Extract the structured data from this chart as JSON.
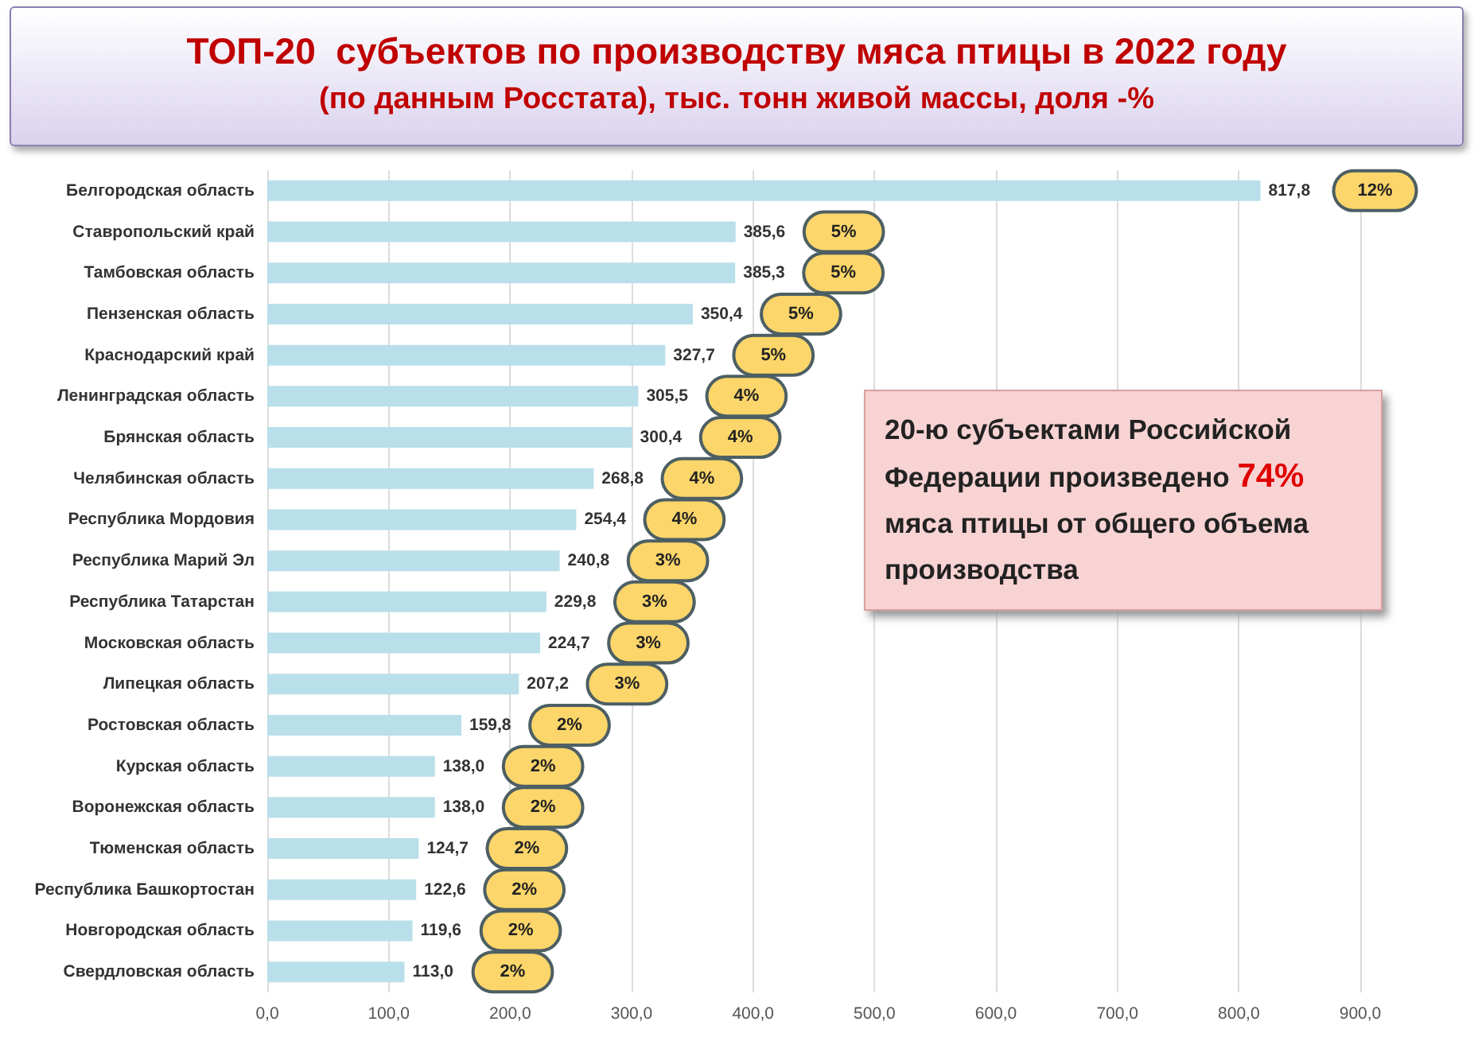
{
  "chart_data": {
    "type": "bar",
    "orientation": "horizontal",
    "title": "ТОП-20  субъектов по производству мяса птицы в 2022 году",
    "subtitle": "(по данным Росстата), тыс. тонн живой массы, доля -%",
    "categories": [
      "Белгородская область",
      "Ставропольский край",
      "Тамбовская область",
      "Пензенская область",
      "Краснодарский край",
      "Ленинградская область",
      "Брянская область",
      "Челябинская область",
      "Республика Мордовия",
      "Республика Марий Эл",
      "Республика Татарстан",
      "Московская область",
      "Липецкая область",
      "Ростовская область",
      "Курская область",
      "Воронежская область",
      "Тюменская область",
      "Республика Башкортостан",
      "Новгородская область",
      "Свердловская область"
    ],
    "values": [
      817.8,
      385.6,
      385.3,
      350.4,
      327.7,
      305.5,
      300.4,
      268.8,
      254.4,
      240.8,
      229.8,
      224.7,
      207.2,
      159.8,
      138.0,
      138.0,
      124.7,
      122.6,
      119.6,
      113.0
    ],
    "value_labels": [
      "817,8",
      "385,6",
      "385,3",
      "350,4",
      "327,7",
      "305,5",
      "300,4",
      "268,8",
      "254,4",
      "240,8",
      "229,8",
      "224,7",
      "207,2",
      "159,8",
      "138,0",
      "138,0",
      "124,7",
      "122,6",
      "119,6",
      "113,0"
    ],
    "color": "#b9dfea",
    "xlim": [
      0,
      900
    ],
    "xticks": [
      {
        "value": 0,
        "label": "0,0"
      },
      {
        "value": 100,
        "label": "100,0"
      },
      {
        "value": 200,
        "label": "200,0"
      },
      {
        "value": 300,
        "label": "300,0"
      },
      {
        "value": 400,
        "label": "400,0"
      },
      {
        "value": 500,
        "label": "500,0"
      },
      {
        "value": 600,
        "label": "600,0"
      },
      {
        "value": 700,
        "label": "700,0"
      },
      {
        "value": 800,
        "label": "800,0"
      },
      {
        "value": 900,
        "label": "900,0"
      }
    ],
    "grid": "x",
    "annotations": [
      "20-ю субъектами Российской Федерации произведено 74% мяса птицы от общего объема производства",
      "12%",
      "5%",
      "5%",
      "5%",
      "5%",
      "4%",
      "4%",
      "4%",
      "4%",
      "3%",
      "3%",
      "3%",
      "3%",
      "2%",
      "2%",
      "2%",
      "2%",
      "2%",
      "2%",
      "2%"
    ]
  }
}
